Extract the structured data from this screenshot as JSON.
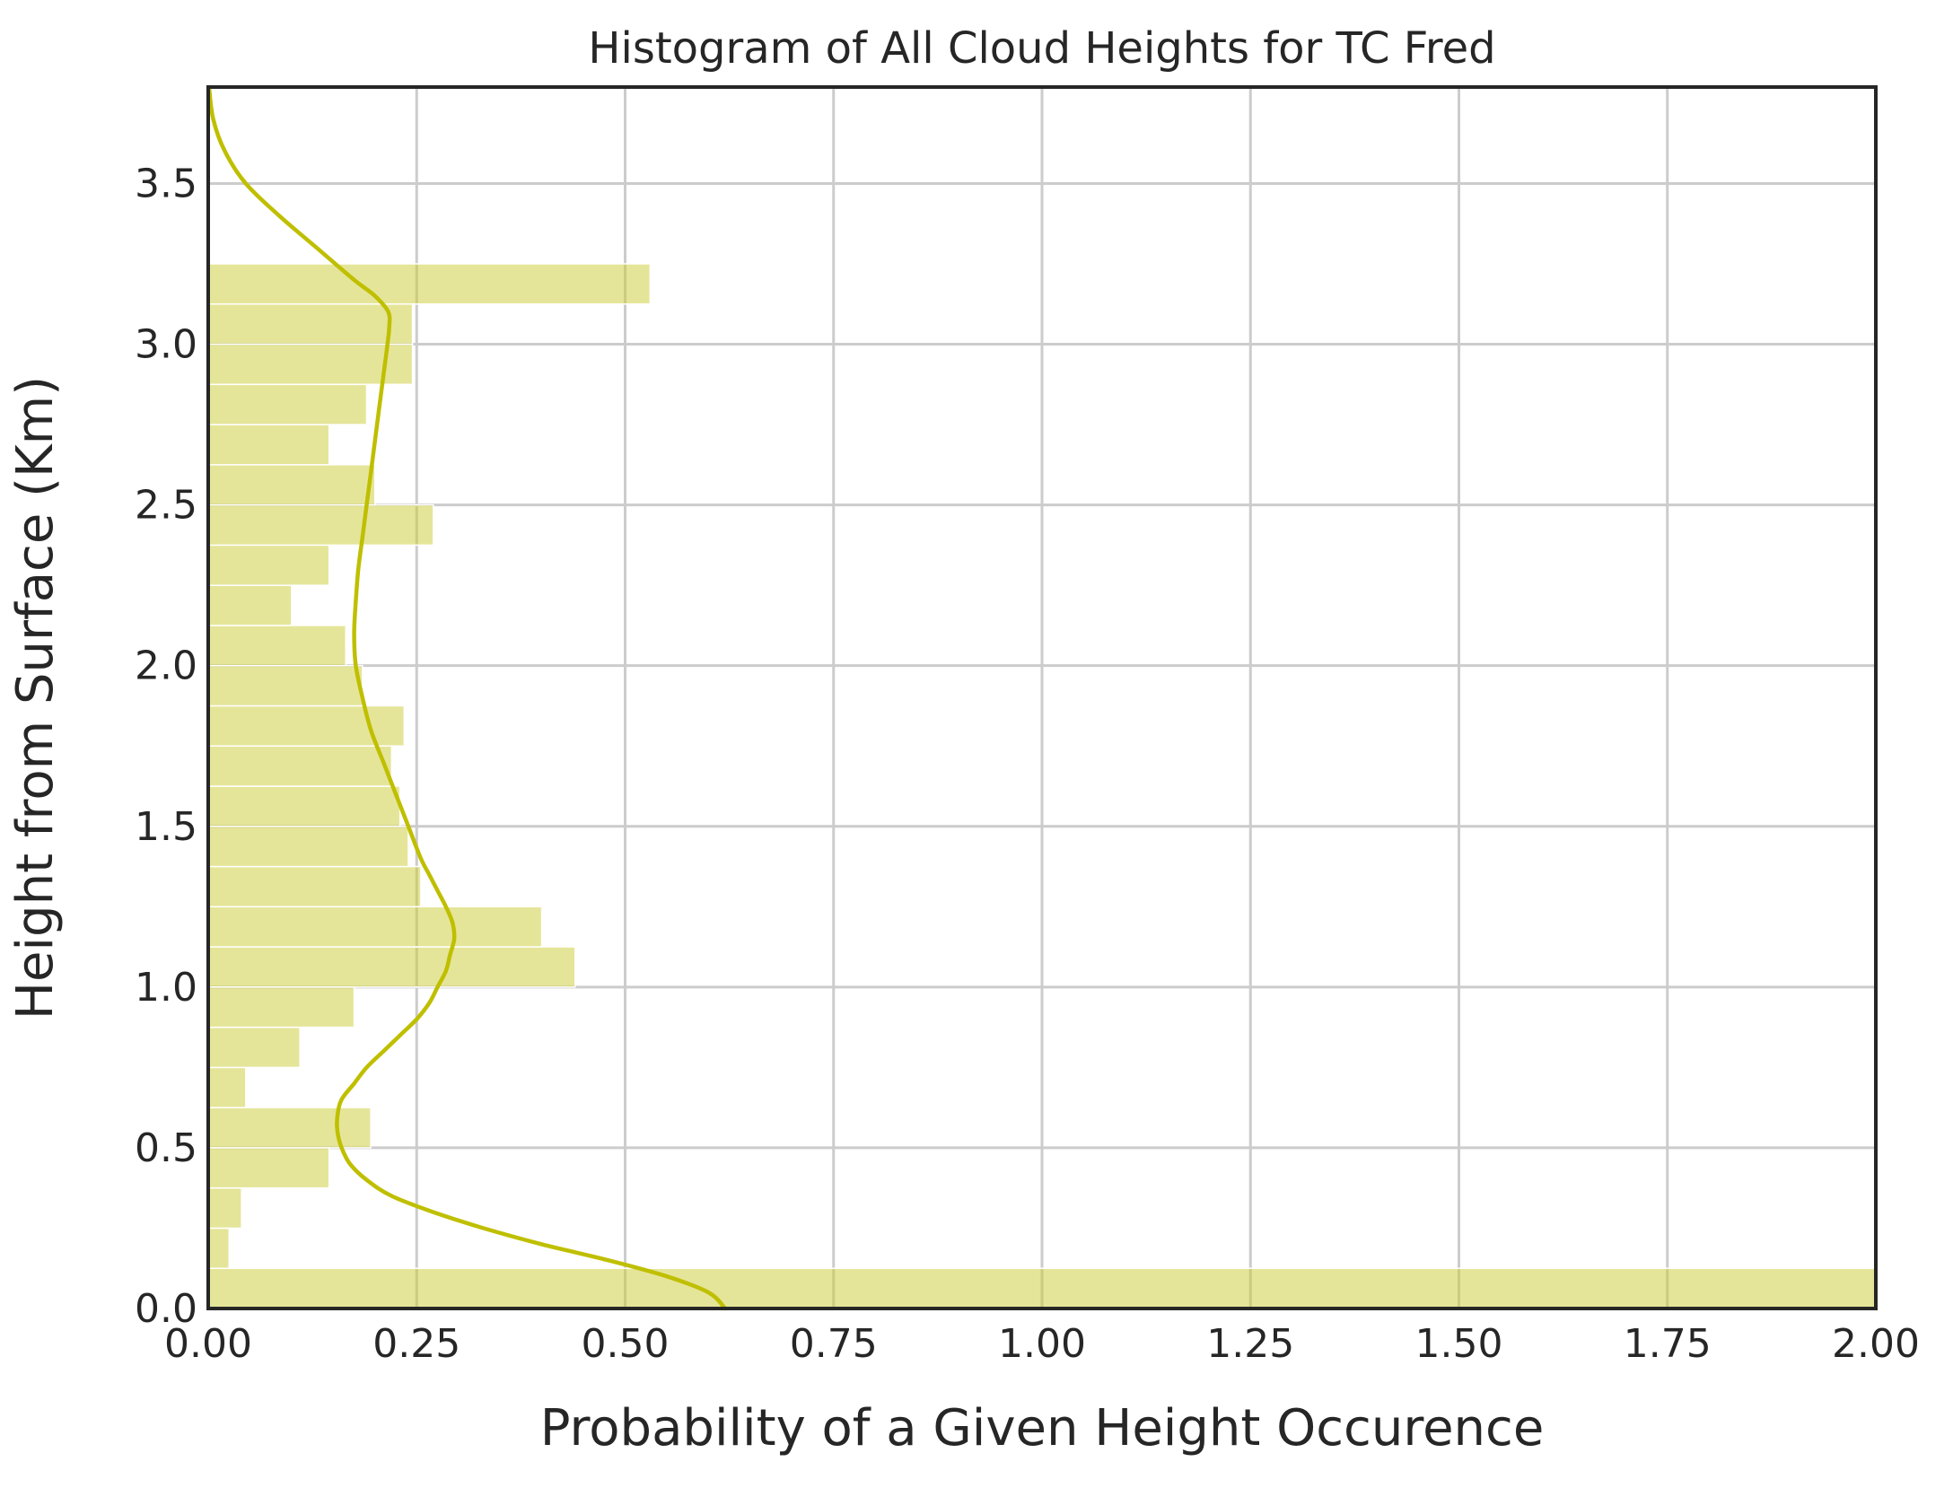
{
  "chart_data": {
    "type": "histogram",
    "orientation": "horizontal",
    "title": "Histogram of All Cloud Heights for TC Fred",
    "xlabel": "Probability of a Given Height Occurence",
    "ylabel": "Height from Surface (Km)",
    "xlim": [
      0,
      2.0
    ],
    "ylim": [
      0,
      3.8
    ],
    "xticks": [
      "0.00",
      "0.25",
      "0.50",
      "0.75",
      "1.00",
      "1.25",
      "1.50",
      "1.75",
      "2.00"
    ],
    "xtick_values": [
      0,
      0.25,
      0.5,
      0.75,
      1.0,
      1.25,
      1.5,
      1.75,
      2.0
    ],
    "yticks": [
      "0.0",
      "0.5",
      "1.0",
      "1.5",
      "2.0",
      "2.5",
      "3.0",
      "3.5"
    ],
    "ytick_values": [
      0,
      0.5,
      1.0,
      1.5,
      2.0,
      2.5,
      3.0,
      3.5
    ],
    "grid": true,
    "bar_color": "#cccc33",
    "kde_color": "#bfbf00",
    "bins": [
      {
        "y0": 0.0,
        "y1": 0.125,
        "value": 2.0
      },
      {
        "y0": 0.125,
        "y1": 0.25,
        "value": 0.025
      },
      {
        "y0": 0.25,
        "y1": 0.375,
        "value": 0.04
      },
      {
        "y0": 0.375,
        "y1": 0.5,
        "value": 0.145
      },
      {
        "y0": 0.5,
        "y1": 0.625,
        "value": 0.195
      },
      {
        "y0": 0.625,
        "y1": 0.75,
        "value": 0.045
      },
      {
        "y0": 0.75,
        "y1": 0.875,
        "value": 0.11
      },
      {
        "y0": 0.875,
        "y1": 1.0,
        "value": 0.175
      },
      {
        "y0": 1.0,
        "y1": 1.125,
        "value": 0.44
      },
      {
        "y0": 1.125,
        "y1": 1.25,
        "value": 0.4
      },
      {
        "y0": 1.25,
        "y1": 1.375,
        "value": 0.255
      },
      {
        "y0": 1.375,
        "y1": 1.5,
        "value": 0.24
      },
      {
        "y0": 1.5,
        "y1": 1.625,
        "value": 0.23
      },
      {
        "y0": 1.625,
        "y1": 1.75,
        "value": 0.22
      },
      {
        "y0": 1.75,
        "y1": 1.875,
        "value": 0.235
      },
      {
        "y0": 1.875,
        "y1": 2.0,
        "value": 0.185
      },
      {
        "y0": 2.0,
        "y1": 2.125,
        "value": 0.165
      },
      {
        "y0": 2.125,
        "y1": 2.25,
        "value": 0.1
      },
      {
        "y0": 2.25,
        "y1": 2.375,
        "value": 0.145
      },
      {
        "y0": 2.375,
        "y1": 2.5,
        "value": 0.27
      },
      {
        "y0": 2.5,
        "y1": 2.625,
        "value": 0.2
      },
      {
        "y0": 2.625,
        "y1": 2.75,
        "value": 0.145
      },
      {
        "y0": 2.75,
        "y1": 2.875,
        "value": 0.19
      },
      {
        "y0": 2.875,
        "y1": 3.0,
        "value": 0.245
      },
      {
        "y0": 3.0,
        "y1": 3.125,
        "value": 0.245
      },
      {
        "y0": 3.125,
        "y1": 3.25,
        "value": 0.53
      }
    ],
    "kde": {
      "y": [
        0.0,
        0.05,
        0.1,
        0.15,
        0.2,
        0.25,
        0.3,
        0.35,
        0.4,
        0.45,
        0.5,
        0.55,
        0.6,
        0.65,
        0.7,
        0.75,
        0.8,
        0.85,
        0.9,
        0.95,
        1.0,
        1.05,
        1.1,
        1.15,
        1.2,
        1.25,
        1.3,
        1.35,
        1.4,
        1.5,
        1.6,
        1.7,
        1.8,
        1.9,
        2.0,
        2.1,
        2.2,
        2.3,
        2.4,
        2.5,
        2.6,
        2.7,
        2.8,
        2.9,
        3.0,
        3.05,
        3.1,
        3.15,
        3.2,
        3.3,
        3.4,
        3.5,
        3.6,
        3.7,
        3.8
      ],
      "x": [
        0.62,
        0.6,
        0.55,
        0.48,
        0.4,
        0.33,
        0.27,
        0.22,
        0.19,
        0.17,
        0.16,
        0.155,
        0.155,
        0.16,
        0.175,
        0.19,
        0.21,
        0.23,
        0.25,
        0.265,
        0.275,
        0.285,
        0.29,
        0.295,
        0.293,
        0.285,
        0.275,
        0.265,
        0.255,
        0.24,
        0.225,
        0.21,
        0.195,
        0.185,
        0.177,
        0.175,
        0.177,
        0.18,
        0.185,
        0.19,
        0.195,
        0.2,
        0.205,
        0.21,
        0.215,
        0.217,
        0.216,
        0.2,
        0.175,
        0.13,
        0.085,
        0.045,
        0.02,
        0.006,
        0.001
      ]
    }
  }
}
